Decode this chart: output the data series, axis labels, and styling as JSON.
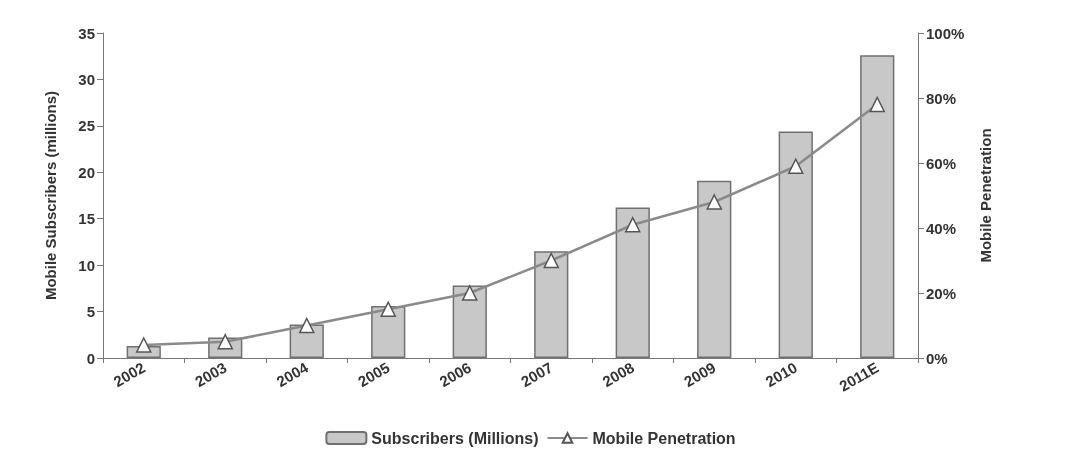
{
  "chart_data": {
    "type": "bar",
    "categories": [
      "2002",
      "2003",
      "2004",
      "2005",
      "2006",
      "2007",
      "2008",
      "2009",
      "2010",
      "2011E"
    ],
    "series": [
      {
        "name": "Subscribers (Millions)",
        "color": "#c8c8c8",
        "values": [
          1.3,
          2.2,
          3.6,
          5.6,
          7.8,
          11.5,
          16.2,
          19.1,
          24.4,
          32.6
        ]
      },
      {
        "name": "Mobile Penetration",
        "type": "line",
        "axis": "y2",
        "color": "#8a8a8a",
        "marker": "triangle",
        "values": [
          4,
          5,
          10,
          15,
          20,
          30,
          41,
          48,
          59,
          78
        ]
      }
    ],
    "ylabel": "Mobile Subscribers (millions)",
    "y2label": "Mobile Penetration",
    "ylim": [
      0,
      35
    ],
    "yticks": [
      0,
      5,
      10,
      15,
      20,
      25,
      30,
      35
    ],
    "y2lim": [
      0,
      100
    ],
    "y2ticks": [
      {
        "value": 0,
        "label": "0%"
      },
      {
        "value": 20,
        "label": "20%"
      },
      {
        "value": 40,
        "label": "40%"
      },
      {
        "value": 60,
        "label": "60%"
      },
      {
        "value": 80,
        "label": "80%"
      },
      {
        "value": 100,
        "label": "100%"
      }
    ],
    "grid": false,
    "legend": "bottom"
  }
}
